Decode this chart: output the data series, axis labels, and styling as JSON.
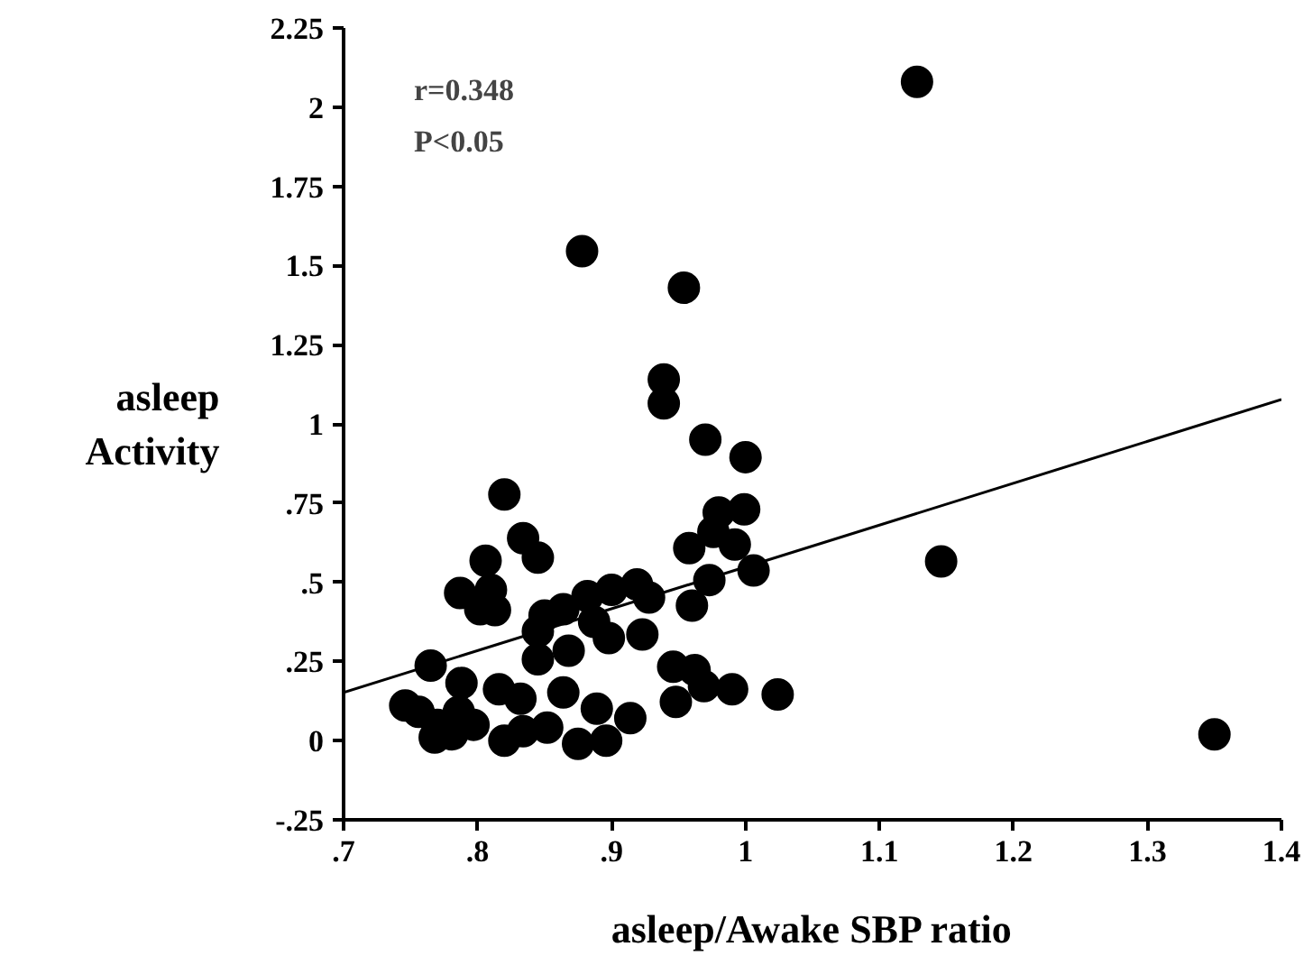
{
  "chart_data": {
    "type": "scatter",
    "xlabel": "asleep/Awake SBP ratio",
    "ylabel": "asleep\nActivity",
    "annotations": [
      "r=0.348",
      "P<0.05"
    ],
    "grid": false,
    "xlim": [
      0.7,
      1.4
    ],
    "ylim": [
      -0.25,
      2.25
    ],
    "xticks": [
      {
        "value": 0.7,
        "label": ".7"
      },
      {
        "value": 0.8,
        "label": ".8"
      },
      {
        "value": 0.9,
        "label": ".9"
      },
      1,
      1.1,
      1.2,
      1.3,
      1.4
    ],
    "yticks": [
      {
        "value": -0.25,
        "label": "-.25"
      },
      0,
      {
        "value": 0.25,
        "label": ".25"
      },
      {
        "value": 0.5,
        "label": ".5"
      },
      {
        "value": 0.75,
        "label": ".75"
      },
      1,
      1.25,
      1.5,
      1.75,
      2,
      2.25
    ],
    "series": [
      {
        "marker": "circle",
        "color": "#000000",
        "x": [
          1.128,
          0.878,
          0.954,
          0.939,
          0.939,
          0.97,
          1.0,
          1.146,
          1.35,
          0.82,
          0.834,
          0.845,
          0.806,
          0.787,
          0.81,
          0.802,
          0.813,
          0.85,
          0.864,
          0.845,
          0.845,
          0.868,
          0.882,
          0.9,
          0.919,
          0.928,
          0.887,
          0.898,
          0.923,
          0.958,
          0.98,
          0.999,
          0.976,
          0.992,
          1.006,
          0.973,
          0.96,
          0.765,
          0.746,
          0.756,
          0.768,
          0.788,
          0.786,
          0.797,
          0.781,
          0.816,
          0.82,
          0.832,
          0.834,
          0.864,
          0.852,
          0.875,
          0.889,
          0.896,
          0.914,
          0.946,
          0.948,
          0.962,
          0.969,
          0.99,
          1.024,
          0.77
        ],
        "values": [
          2.08,
          1.545,
          1.43,
          1.14,
          1.065,
          0.95,
          0.895,
          0.566,
          0.02,
          0.777,
          0.639,
          0.578,
          0.568,
          0.466,
          0.476,
          0.415,
          0.412,
          0.395,
          0.415,
          0.345,
          0.257,
          0.284,
          0.456,
          0.476,
          0.493,
          0.452,
          0.375,
          0.324,
          0.335,
          0.608,
          0.72,
          0.73,
          0.659,
          0.619,
          0.537,
          0.507,
          0.426,
          0.237,
          0.111,
          0.091,
          0.01,
          0.182,
          0.091,
          0.05,
          0.02,
          0.162,
          0.0,
          0.132,
          0.03,
          0.152,
          0.041,
          -0.01,
          0.101,
          0.0,
          0.071,
          0.233,
          0.122,
          0.223,
          0.172,
          0.162,
          0.146,
          0.05
        ]
      },
      {
        "type": "line",
        "color": "#000000",
        "x": [
          0.7,
          1.4
        ],
        "values": [
          0.152,
          1.077
        ]
      }
    ]
  }
}
